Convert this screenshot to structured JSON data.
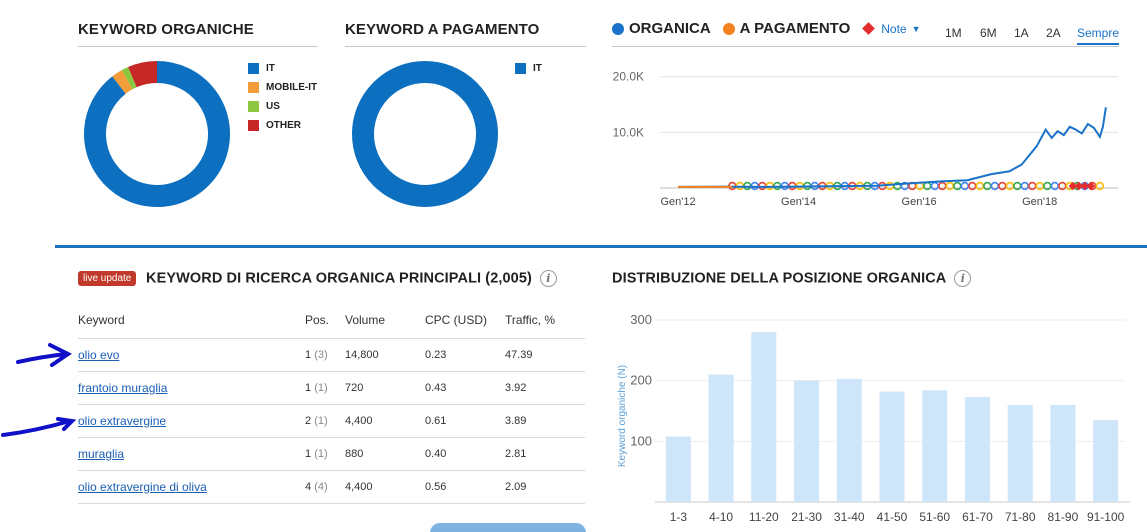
{
  "organic_keywords": {
    "title": "KEYWORD ORGANICHE",
    "legend": [
      {
        "label": "IT",
        "color": "#0c6fbf"
      },
      {
        "label": "MOBILE-IT",
        "color": "#f39c3a"
      },
      {
        "label": "US",
        "color": "#8cc63f"
      },
      {
        "label": "OTHER",
        "color": "#c62828"
      }
    ],
    "donut_shares": [
      89.5,
      2.5,
      1.5,
      6.5
    ]
  },
  "paid_keywords": {
    "title": "KEYWORD A PAGAMENTO",
    "legend": [
      {
        "label": "IT",
        "color": "#0c6fbf"
      }
    ],
    "donut_shares": [
      100
    ]
  },
  "trend": {
    "series_organic": "ORGANICA",
    "series_paid": "A PAGAMENTO",
    "notes_label": "Note",
    "ranges": [
      "1M",
      "6M",
      "1A",
      "2A",
      "Sempre"
    ],
    "active_range": "Sempre",
    "colors": {
      "organic": "#1a73c8",
      "paid": "#f58220"
    },
    "chart_data": {
      "type": "line",
      "y_ticks": [
        "20.0K",
        "10.0K"
      ],
      "x_ticks": [
        "Gen'12",
        "Gen'14",
        "Gen'16",
        "Gen'18"
      ],
      "x_range": [
        2011.7,
        2019.3
      ],
      "ylim": [
        0,
        23000
      ],
      "series": [
        {
          "x": [
            2012.0,
            2012.8,
            2013.5,
            2014.5,
            2015.3,
            2015.8,
            2016.4,
            2016.8,
            2017.2,
            2017.5,
            2017.7,
            2017.8,
            2017.95,
            2018.05,
            2018.1,
            2018.2,
            2018.3,
            2018.4,
            2018.5,
            2018.6,
            2018.7,
            2018.8,
            2018.9,
            2019.0,
            2019.05,
            2019.1
          ],
          "y": [
            200,
            250,
            200,
            300,
            400,
            800,
            1200,
            1400,
            2500,
            3000,
            4200,
            5500,
            7500,
            9500,
            10500,
            9000,
            10200,
            9500,
            11000,
            10500,
            9800,
            11500,
            10800,
            9200,
            11000,
            14500
          ]
        },
        {
          "x": [
            2012.0,
            2012.9
          ],
          "y": [
            200,
            200
          ]
        }
      ]
    }
  },
  "top_keywords": {
    "badge": "live update",
    "title": "KEYWORD DI RICERCA ORGANICA PRINCIPALI (2,005)",
    "columns": {
      "keyword": "Keyword",
      "pos": "Pos.",
      "volume": "Volume",
      "cpc": "CPC (USD)",
      "traffic": "Traffic, %"
    },
    "rows": [
      {
        "keyword": "olio evo",
        "pos": "1",
        "prev": "(3)",
        "volume": "14,800",
        "cpc": "0.23",
        "traffic": "47.39"
      },
      {
        "keyword": "frantoio muraglia",
        "pos": "1",
        "prev": "(1)",
        "volume": "720",
        "cpc": "0.43",
        "traffic": "3.92"
      },
      {
        "keyword": "olio extravergine",
        "pos": "2",
        "prev": "(1)",
        "volume": "4,400",
        "cpc": "0.61",
        "traffic": "3.89"
      },
      {
        "keyword": "muraglia",
        "pos": "1",
        "prev": "(1)",
        "volume": "880",
        "cpc": "0.40",
        "traffic": "2.81"
      },
      {
        "keyword": "olio extravergine di oliva",
        "pos": "4",
        "prev": "(4)",
        "volume": "4,400",
        "cpc": "0.56",
        "traffic": "2.09"
      }
    ]
  },
  "distribution": {
    "title": "DISTRIBUZIONE DELLA POSIZIONE ORGANICA",
    "chart_data": {
      "type": "bar",
      "categories": [
        "1-3",
        "4-10",
        "11-20",
        "21-30",
        "31-40",
        "41-50",
        "51-60",
        "61-70",
        "71-80",
        "81-90",
        "91-100"
      ],
      "values": [
        108,
        210,
        280,
        200,
        203,
        182,
        184,
        173,
        160,
        160,
        135
      ],
      "ylabel": "Keyword organiche (N)",
      "y_ticks": [
        100,
        200,
        300
      ],
      "ylim": [
        0,
        300
      ],
      "bar_color": "#cfe5f9"
    }
  }
}
